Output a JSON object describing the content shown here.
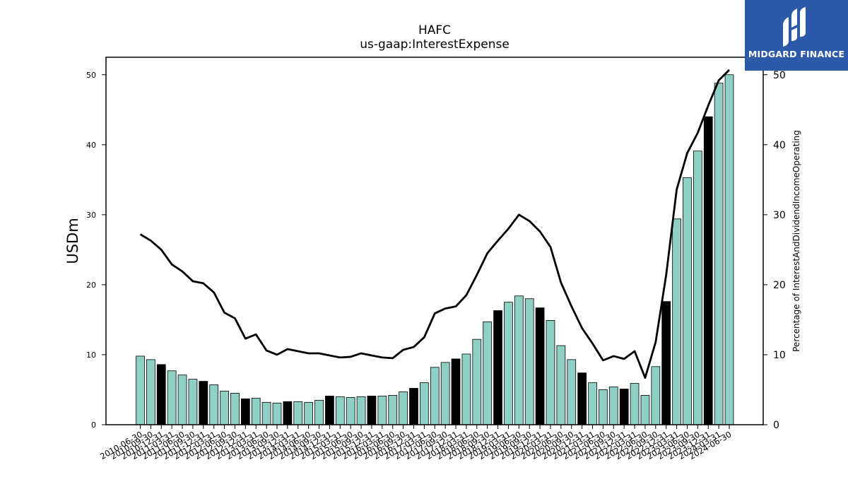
{
  "chart_data": {
    "type": "bar",
    "title": "HAFC",
    "subtitle": "us-gaap:InterestExpense",
    "ylabel": "USDm",
    "y2label": "Percentage of InterestAndDividendIncomeOperating",
    "ylim": [
      0,
      52.5
    ],
    "y2lim": [
      0,
      52.5
    ],
    "yticks": [
      0,
      10,
      20,
      30,
      40,
      50
    ],
    "y2ticks": [
      0,
      10,
      20,
      30,
      40,
      50
    ],
    "bar_color": "#8ed1c4",
    "highlight_color": "#000000",
    "line_color": "#000000",
    "categories": [
      "2010-06-30",
      "2010-09-30",
      "2010-12-31",
      "2011-03-31",
      "2011-06-30",
      "2011-09-30",
      "2011-12-31",
      "2012-03-31",
      "2012-06-30",
      "2012-09-30",
      "2012-12-31",
      "2013-03-31",
      "2013-06-30",
      "2013-09-30",
      "2013-12-31",
      "2014-03-31",
      "2014-06-30",
      "2014-09-30",
      "2014-12-31",
      "2015-03-31",
      "2015-06-30",
      "2015-09-30",
      "2015-12-31",
      "2016-03-31",
      "2016-06-30",
      "2016-09-30",
      "2016-12-31",
      "2017-03-31",
      "2017-06-30",
      "2017-09-30",
      "2017-12-31",
      "2018-03-31",
      "2018-06-30",
      "2018-09-30",
      "2018-12-31",
      "2019-03-31",
      "2019-06-30",
      "2019-09-30",
      "2019-12-31",
      "2020-03-31",
      "2020-06-30",
      "2020-09-30",
      "2020-12-31",
      "2021-03-31",
      "2021-06-30",
      "2021-09-30",
      "2021-12-31",
      "2022-03-31",
      "2022-06-30",
      "2022-09-30",
      "2022-12-31",
      "2023-03-31",
      "2023-06-30",
      "2023-09-30",
      "2023-12-31",
      "2024-03-31",
      "2024-06-30"
    ],
    "series": [
      {
        "values": [
          9.8,
          9.3,
          8.6,
          7.7,
          7.1,
          6.5,
          6.2,
          5.7,
          4.8,
          4.5,
          3.7,
          3.8,
          3.2,
          3.1,
          3.3,
          3.3,
          3.2,
          3.5,
          4.1,
          4.0,
          3.9,
          4.0,
          4.1,
          4.1,
          4.2,
          4.7,
          5.2,
          6.0,
          8.2,
          8.9,
          9.4,
          10.1,
          12.2,
          14.7,
          16.3,
          17.5,
          18.4,
          18.0,
          16.7,
          14.9,
          11.3,
          9.3,
          7.4,
          6.0,
          5.0,
          5.4,
          5.1,
          5.9,
          4.2,
          8.3,
          17.6,
          29.4,
          35.3,
          39.1,
          44.0,
          48.8,
          50.0
        ]
      },
      {
        "values": [
          27.2,
          26.3,
          25.0,
          22.9,
          21.9,
          20.5,
          20.2,
          18.9,
          16.0,
          15.2,
          12.3,
          12.9,
          10.6,
          10.0,
          10.8,
          10.5,
          10.2,
          10.2,
          9.9,
          9.6,
          9.7,
          10.2,
          9.9,
          9.6,
          9.5,
          10.7,
          11.1,
          12.5,
          15.9,
          16.6,
          16.9,
          18.5,
          21.4,
          24.5,
          26.3,
          28.0,
          30.0,
          29.1,
          27.6,
          25.4,
          20.3,
          16.9,
          13.8,
          11.6,
          9.2,
          9.8,
          9.4,
          10.5,
          6.7,
          11.8,
          21.4,
          33.6,
          38.8,
          41.7,
          45.6,
          49.2,
          50.7
        ]
      }
    ],
    "highlight_indices": [
      2,
      6,
      10,
      14,
      18,
      22,
      26,
      30,
      34,
      38,
      42,
      46,
      50,
      54
    ]
  },
  "logo": {
    "text": "MIDGARD FINANCE"
  }
}
